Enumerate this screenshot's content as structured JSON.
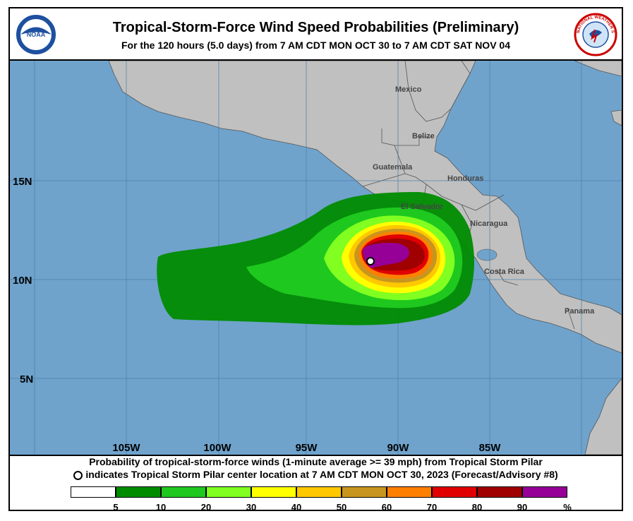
{
  "title": "Tropical-Storm-Force Wind Speed Probabilities (Preliminary)",
  "subtitle": "For the 120 hours (5.0 days) from 7 AM CDT MON OCT 30 to 7 AM CDT SAT NOV 04",
  "logos": {
    "left": "NOAA",
    "right": "NATIONAL WEATHER SERVICE"
  },
  "caption": {
    "line1": "Probability of tropical-storm-force winds (1-minute average >= 39 mph) from Tropical Storm Pilar",
    "line2": "indicates Tropical Storm Pilar center location at 7 AM CDT MON OCT 30, 2023 (Forecast/Advisory #8)"
  },
  "map": {
    "lat_labels": [
      "15N",
      "10N",
      "5N"
    ],
    "lon_labels": [
      "105W",
      "100W",
      "95W",
      "90W",
      "85W"
    ],
    "countries": [
      "Mexico",
      "Belize",
      "Guatemala",
      "Honduras",
      "El Salvador",
      "Nicaragua",
      "Costa Rica",
      "Panama"
    ],
    "storm_center": {
      "lat": 11.0,
      "lon": -91.5
    },
    "colors": {
      "ocean": "#6fa3cc",
      "land": "#c0c0c0",
      "border": "#555555"
    }
  },
  "legend": {
    "unit": "%",
    "ticks": [
      "5",
      "10",
      "20",
      "30",
      "40",
      "50",
      "60",
      "70",
      "80",
      "90"
    ],
    "colors": [
      "#ffffff",
      "#008c00",
      "#1ec81e",
      "#80ff20",
      "#ffff00",
      "#ffc800",
      "#c8961e",
      "#ff8000",
      "#e00000",
      "#a00000",
      "#960096"
    ]
  }
}
